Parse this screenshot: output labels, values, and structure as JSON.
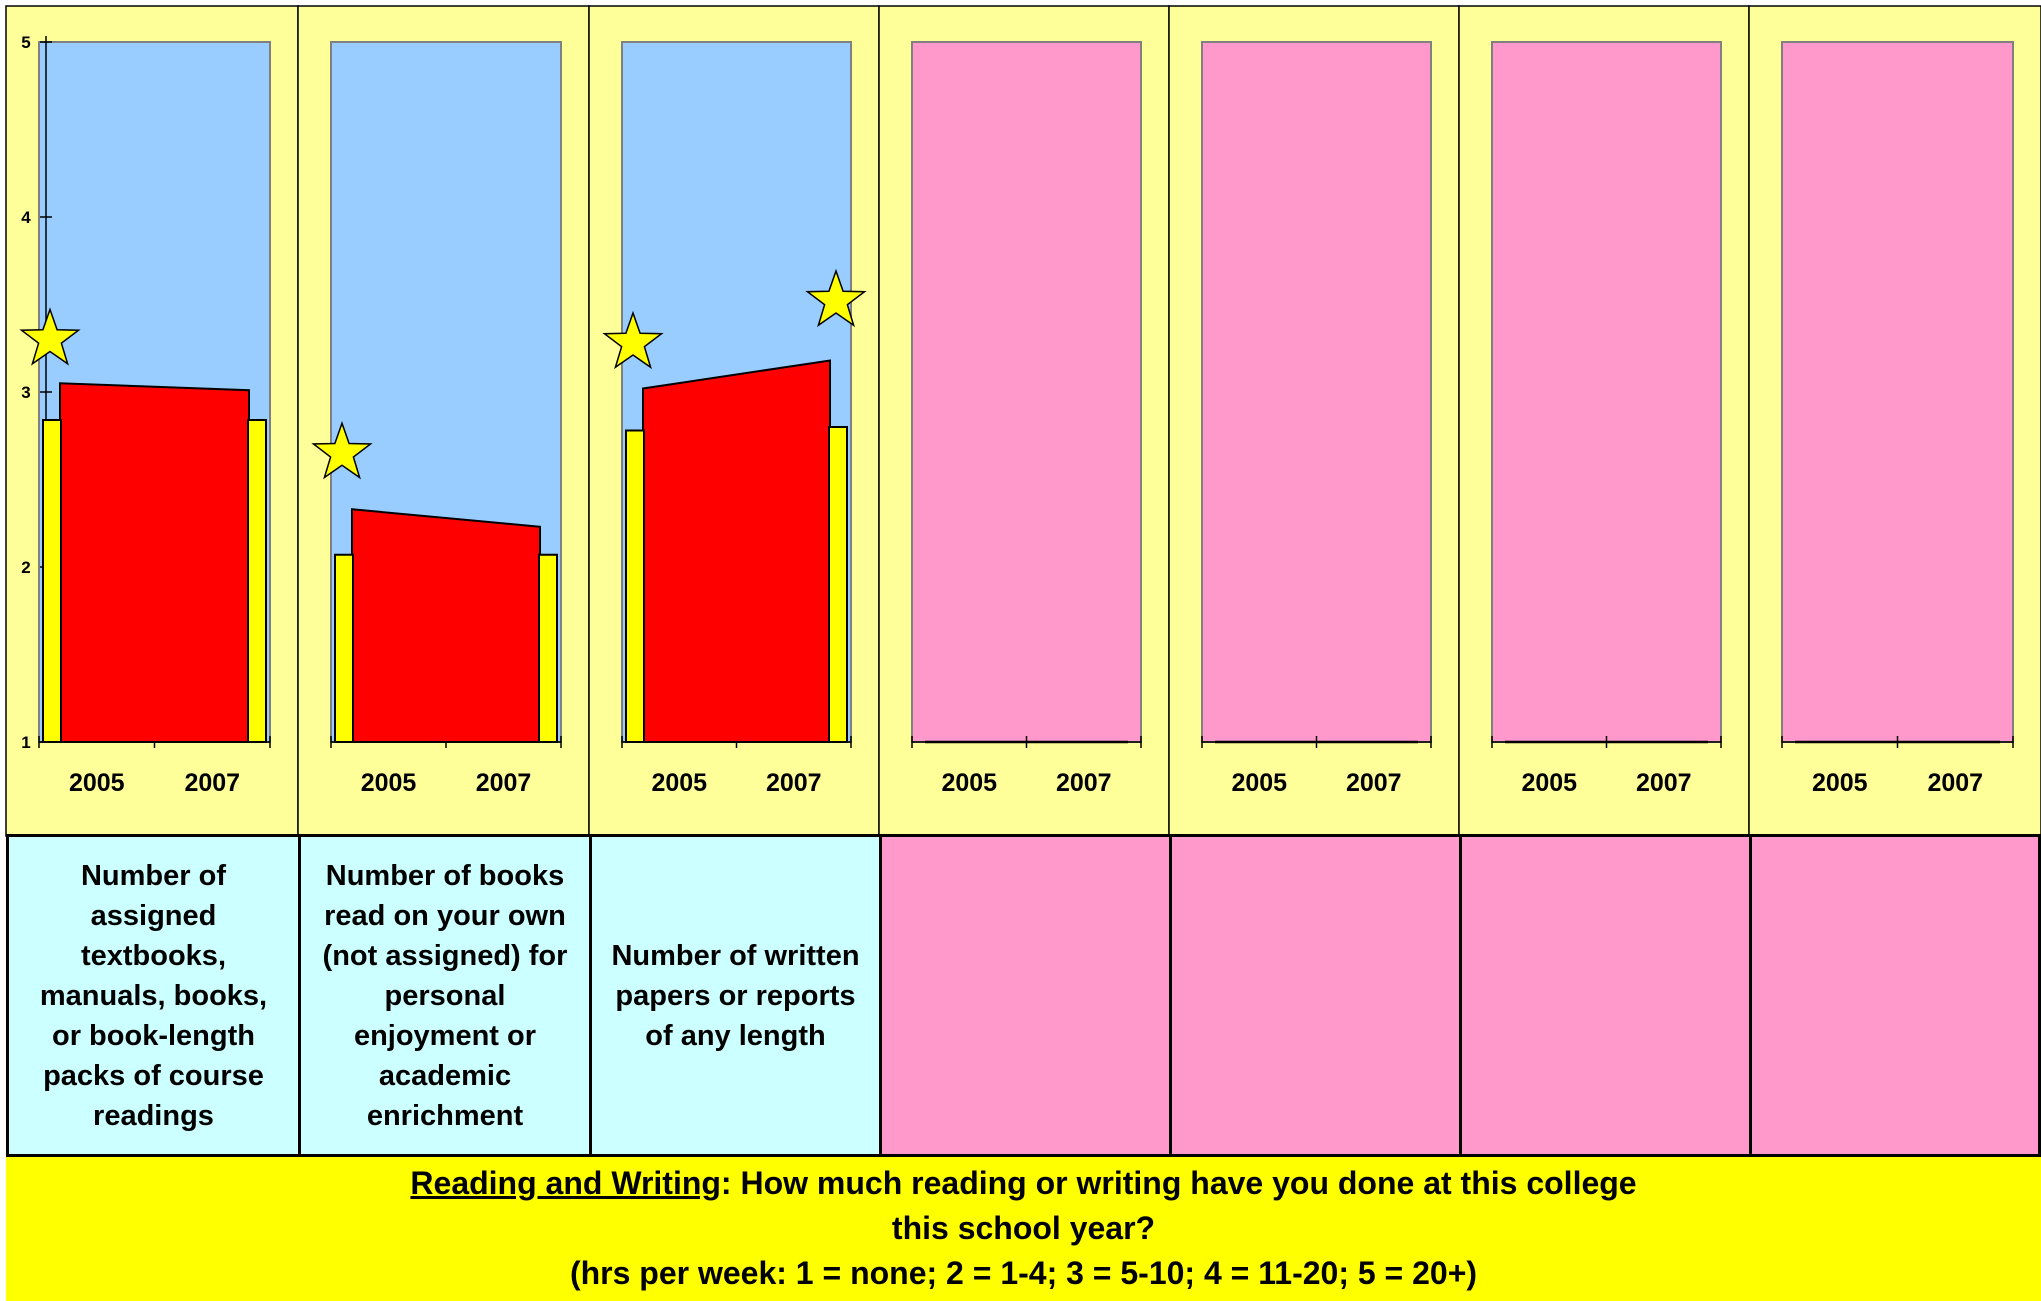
{
  "colors": {
    "outer_panel": "#ffff99",
    "plot_background_first_three": "#99ccff",
    "plot_background_others": "#ff99cc",
    "label_background_first_three": "#ccffff",
    "label_background_others": "#ff99cc",
    "bar": "#ffff00",
    "connector": "#ff0000",
    "star": "#ffff00",
    "footer_background": "#ffff00"
  },
  "chart_data": {
    "type": "bar",
    "ylim": [
      1,
      5
    ],
    "y_ticks": [
      "1",
      "2",
      "3",
      "4",
      "5"
    ],
    "categories": [
      "2005",
      "2007"
    ],
    "grid": false,
    "panels": [
      {
        "label": "Number of assigned textbooks, manuals, books, or book-length packs of course readings",
        "label_lines": [
          "Number of",
          "assigned",
          "textbooks,",
          "manuals, books,",
          "or book-length",
          "packs of course",
          "readings"
        ],
        "theme": "blue",
        "values": [
          2.84,
          2.84
        ],
        "connector": [
          3.05,
          3.01
        ],
        "stars": [
          {
            "category": "2005",
            "value": 3.3
          }
        ]
      },
      {
        "label": "Number of books read on your own (not assigned) for personal enjoyment or academic enrichment",
        "label_lines": [
          "Number of books",
          "read on your own",
          "(not assigned) for",
          "personal",
          "enjoyment or",
          "academic",
          "enrichment"
        ],
        "theme": "blue",
        "values": [
          2.07,
          2.07
        ],
        "connector": [
          2.33,
          2.23
        ],
        "stars": [
          {
            "category": "2005",
            "value": 2.65
          }
        ]
      },
      {
        "label": "Number of written papers or reports of any length",
        "label_lines": [
          "Number of written",
          "papers or reports",
          "of any length"
        ],
        "theme": "blue",
        "values": [
          2.78,
          2.8
        ],
        "connector": [
          3.02,
          3.18
        ],
        "stars": [
          {
            "category": "2005",
            "value": 3.28
          },
          {
            "category": "2007",
            "value": 3.52
          }
        ]
      },
      {
        "label": "",
        "label_lines": [],
        "theme": "pink",
        "values": [],
        "connector": [],
        "stars": []
      },
      {
        "label": "",
        "label_lines": [],
        "theme": "pink",
        "values": [],
        "connector": [],
        "stars": []
      },
      {
        "label": "",
        "label_lines": [],
        "theme": "pink",
        "values": [],
        "connector": [],
        "stars": []
      },
      {
        "label": "",
        "label_lines": [],
        "theme": "pink",
        "values": [],
        "connector": [],
        "stars": []
      }
    ]
  },
  "footer": {
    "topic": "Reading and Writing",
    "line1_rest": ": How much reading or writing have you done at this college",
    "line2": "this school year?",
    "line3": "(hrs per week: 1 = none;  2 = 1-4;  3 = 5-10;  4 = 11-20;  5 = 20+)"
  }
}
